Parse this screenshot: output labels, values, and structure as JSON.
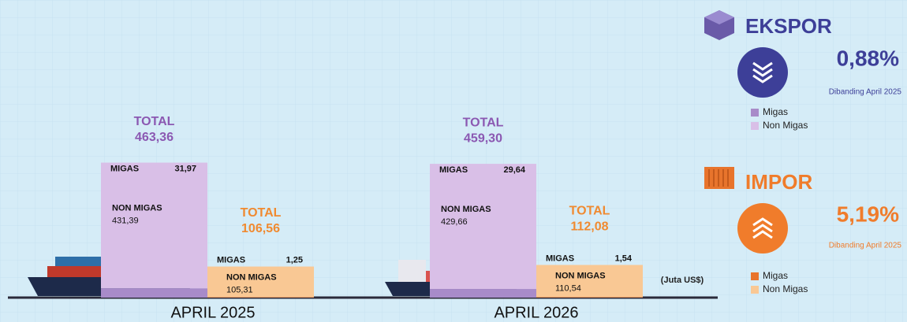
{
  "chart_data": {
    "type": "bar",
    "stacked": true,
    "categories": [
      "APRIL 2025",
      "APRIL 2026"
    ],
    "total_label": "TOTAL",
    "unit": "(Juta US$)",
    "groups": [
      {
        "title": "EKSPOR",
        "direction": "down",
        "change": 0.88,
        "change_label": "0,88%",
        "note": "Dibanding April 2025",
        "accent": "#3d3f98",
        "total_color": "#8b58b2",
        "totals": [
          463.36,
          459.3
        ],
        "total_labels": [
          "463,36",
          "459,30"
        ],
        "series": [
          {
            "name": "Migas",
            "bar_label": "MIGAS",
            "color": "#a88bc9",
            "values": [
              31.97,
              29.64
            ],
            "value_labels": [
              "31,97",
              "29,64"
            ]
          },
          {
            "name": "Non Migas",
            "bar_label": "NON MIGAS",
            "color": "#d9bfe7",
            "values": [
              431.39,
              429.66
            ],
            "value_labels": [
              "431,39",
              "429,66"
            ]
          }
        ]
      },
      {
        "title": "IMPOR",
        "direction": "up",
        "change": 5.19,
        "change_label": "5,19%",
        "note": "Dibanding April 2025",
        "accent": "#f07c2b",
        "total_color": "#f08a30",
        "totals": [
          106.56,
          112.08
        ],
        "total_labels": [
          "106,56",
          "112,08"
        ],
        "series": [
          {
            "name": "Migas",
            "bar_label": "MIGAS",
            "color": "#e8742c",
            "values": [
              1.25,
              1.54
            ],
            "value_labels": [
              "1,25",
              "1,54"
            ]
          },
          {
            "name": "Non Migas",
            "bar_label": "NON MIGAS",
            "color": "#f9c894",
            "values": [
              105.31,
              110.54
            ],
            "value_labels": [
              "105,31",
              "110,54"
            ]
          }
        ]
      }
    ]
  }
}
